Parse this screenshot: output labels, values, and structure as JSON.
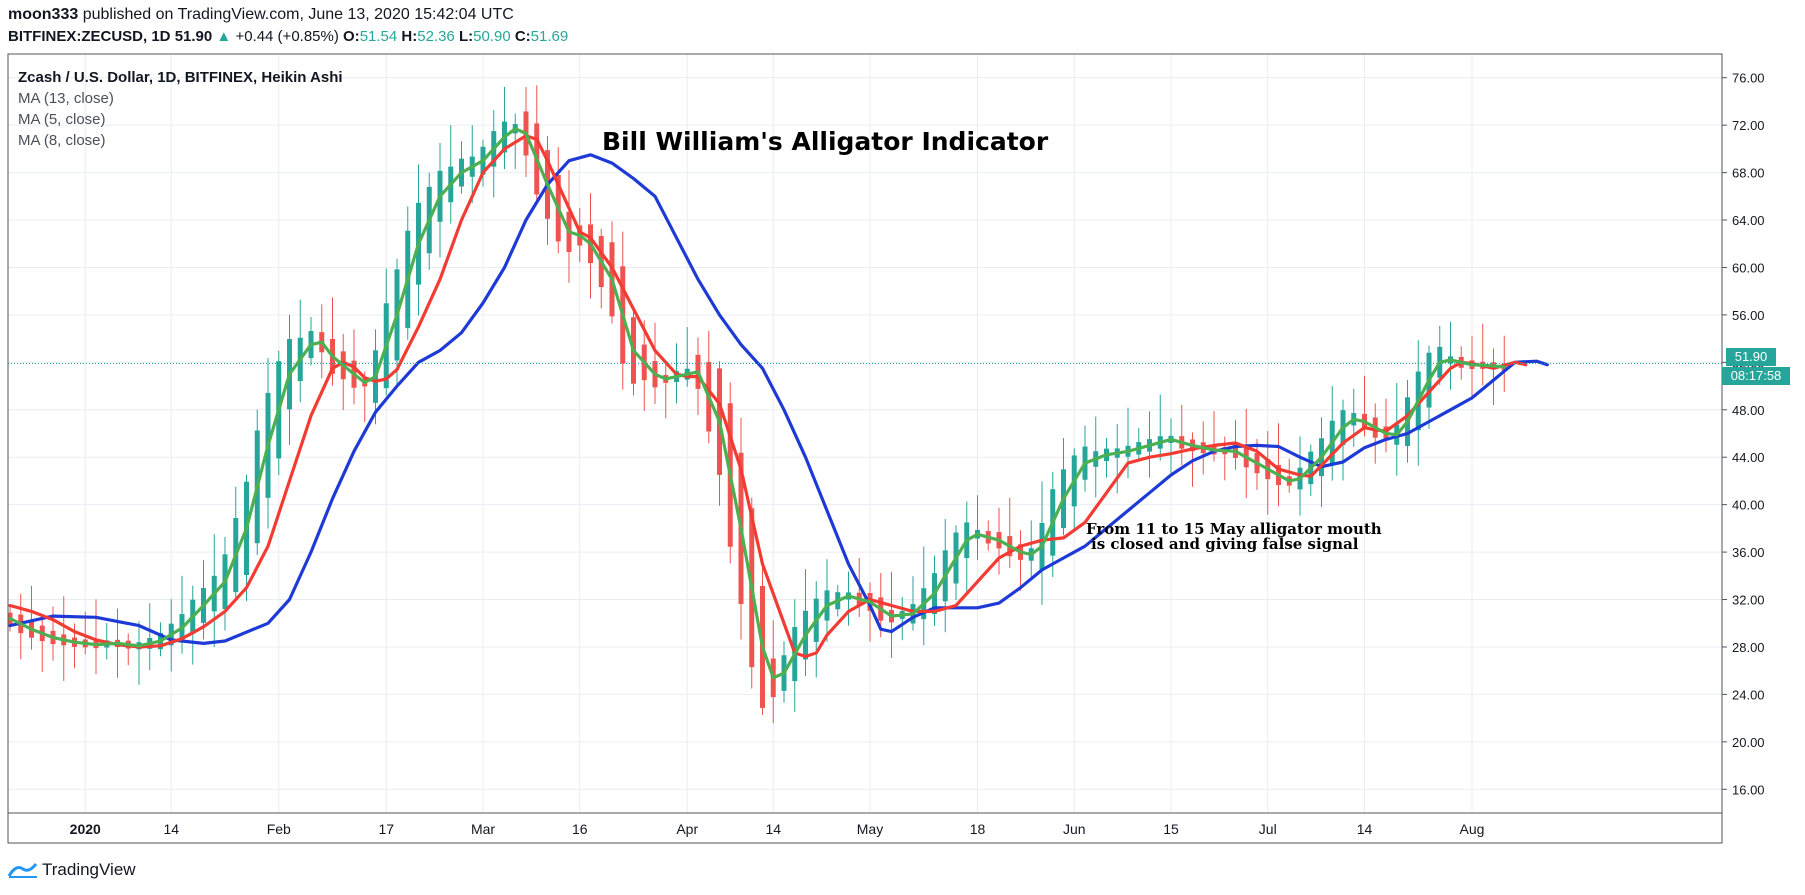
{
  "header": {
    "author": "moon333",
    "published_text": "published on TradingView.com, June 13, 2020 15:42:04 UTC",
    "symbol": "BITFINEX:ZECUSD, 1D",
    "last": "51.90",
    "change": "+0.44 (+0.85%)",
    "o_label": "O:",
    "o_value": "51.54",
    "h_label": "H:",
    "h_value": "52.36",
    "l_label": "L:",
    "l_value": "50.90",
    "c_label": "C:",
    "c_value": "51.69"
  },
  "legend": {
    "main": "Zcash / U.S. Dollar, 1D, BITFINEX, Heikin Ashi",
    "ma13": "MA (13, close)",
    "ma5": "MA (5, close)",
    "ma8": "MA (8, close)"
  },
  "annotation_title": "Bill William's Alligator Indicator",
  "annotation_line1": "From 11 to 15 May alligator mouth",
  "annotation_line2": "is closed and giving false signal",
  "price_tag": "51.90",
  "time_tag": "08:17:58",
  "footer_brand": "TradingView",
  "colors": {
    "up": "#26a69a",
    "down": "#ef5350",
    "ma13": "#1e3ad6",
    "ma5": "#4caf50",
    "ma8": "#f23b32",
    "grid": "#e9edf2"
  },
  "chart_data": {
    "type": "candlestick",
    "style": "Heikin Ashi",
    "ylim": [
      14,
      78
    ],
    "y_ticks": [
      "76.00",
      "72.00",
      "68.00",
      "64.00",
      "60.00",
      "56.00",
      "52.00",
      "48.00",
      "44.00",
      "40.00",
      "36.00",
      "32.00",
      "28.00",
      "24.00",
      "20.00",
      "16.00"
    ],
    "x_ticks": [
      "2020",
      "14",
      "Feb",
      "17",
      "Mar",
      "16",
      "Apr",
      "14",
      "May",
      "18",
      "Jun",
      "15",
      "Jul",
      "14",
      "Aug"
    ],
    "last_price": 51.9,
    "series": [
      {
        "name": "MA (13, close)",
        "points": [
          [
            0,
            29.8
          ],
          [
            4,
            30.6
          ],
          [
            8,
            30.5
          ],
          [
            12,
            29.8
          ],
          [
            15,
            28.6
          ],
          [
            18,
            28.3
          ],
          [
            20,
            28.5
          ],
          [
            24,
            30.0
          ],
          [
            26,
            32.0
          ],
          [
            28,
            36.0
          ],
          [
            30,
            40.5
          ],
          [
            32,
            44.5
          ],
          [
            34,
            47.8
          ],
          [
            36,
            50.0
          ],
          [
            38,
            52.0
          ],
          [
            40,
            53.0
          ],
          [
            42,
            54.5
          ],
          [
            44,
            57.0
          ],
          [
            46,
            60.0
          ],
          [
            48,
            64.0
          ],
          [
            50,
            67.0
          ],
          [
            52,
            69.0
          ],
          [
            54,
            69.5
          ],
          [
            56,
            68.8
          ],
          [
            58,
            67.5
          ],
          [
            60,
            66.0
          ],
          [
            62,
            62.5
          ],
          [
            64,
            59.0
          ],
          [
            66,
            56.0
          ],
          [
            68,
            53.5
          ],
          [
            70,
            51.5
          ],
          [
            72,
            48.0
          ],
          [
            74,
            44.0
          ],
          [
            76,
            39.5
          ],
          [
            78,
            35.0
          ],
          [
            80,
            31.5
          ],
          [
            81,
            29.5
          ],
          [
            82,
            29.3
          ],
          [
            84,
            30.5
          ],
          [
            86,
            31.3
          ],
          [
            88,
            31.3
          ],
          [
            90,
            31.3
          ],
          [
            92,
            31.7
          ],
          [
            94,
            33.0
          ],
          [
            96,
            34.5
          ],
          [
            98,
            35.5
          ],
          [
            100,
            36.5
          ],
          [
            102,
            38.0
          ],
          [
            104,
            39.5
          ],
          [
            106,
            41.0
          ],
          [
            108,
            42.5
          ],
          [
            110,
            43.7
          ],
          [
            112,
            44.5
          ],
          [
            114,
            44.9
          ],
          [
            116,
            45.0
          ],
          [
            118,
            44.9
          ],
          [
            120,
            44.0
          ],
          [
            122,
            43.2
          ],
          [
            124,
            43.6
          ],
          [
            126,
            44.8
          ],
          [
            128,
            45.5
          ],
          [
            130,
            46.0
          ],
          [
            132,
            47.0
          ],
          [
            134,
            48.0
          ],
          [
            136,
            49.0
          ],
          [
            138,
            50.5
          ],
          [
            140,
            52.0
          ],
          [
            142,
            52.1
          ],
          [
            143,
            51.8
          ]
        ]
      },
      {
        "name": "MA (8, close)",
        "points": [
          [
            0,
            31.5
          ],
          [
            2,
            31.0
          ],
          [
            4,
            30.3
          ],
          [
            6,
            29.3
          ],
          [
            8,
            28.6
          ],
          [
            10,
            28.2
          ],
          [
            12,
            28.0
          ],
          [
            14,
            28.1
          ],
          [
            16,
            28.7
          ],
          [
            18,
            29.7
          ],
          [
            20,
            31.0
          ],
          [
            22,
            33.0
          ],
          [
            24,
            36.5
          ],
          [
            26,
            42.0
          ],
          [
            28,
            47.5
          ],
          [
            30,
            51.5
          ],
          [
            31,
            52.0
          ],
          [
            32,
            51.6
          ],
          [
            33,
            50.7
          ],
          [
            34,
            50.4
          ],
          [
            35,
            50.6
          ],
          [
            36,
            51.4
          ],
          [
            38,
            55.0
          ],
          [
            40,
            59.0
          ],
          [
            42,
            64.0
          ],
          [
            44,
            68.0
          ],
          [
            46,
            70.0
          ],
          [
            48,
            71.1
          ],
          [
            49,
            70.8
          ],
          [
            50,
            69.0
          ],
          [
            52,
            65.0
          ],
          [
            53,
            63.0
          ],
          [
            54,
            62.5
          ],
          [
            56,
            60.0
          ],
          [
            58,
            56.5
          ],
          [
            60,
            53.0
          ],
          [
            62,
            51.0
          ],
          [
            63,
            50.8
          ],
          [
            64,
            50.8
          ],
          [
            66,
            48.5
          ],
          [
            68,
            43.0
          ],
          [
            70,
            35.0
          ],
          [
            72,
            30.0
          ],
          [
            73,
            27.5
          ],
          [
            74,
            27.2
          ],
          [
            75,
            27.5
          ],
          [
            76,
            29.0
          ],
          [
            78,
            31.0
          ],
          [
            80,
            32.0
          ],
          [
            82,
            31.5
          ],
          [
            84,
            31.0
          ],
          [
            86,
            31.0
          ],
          [
            88,
            31.5
          ],
          [
            90,
            33.5
          ],
          [
            92,
            35.5
          ],
          [
            94,
            36.5
          ],
          [
            96,
            37.0
          ],
          [
            98,
            37.2
          ],
          [
            100,
            38.5
          ],
          [
            102,
            41.0
          ],
          [
            104,
            43.5
          ],
          [
            106,
            44.0
          ],
          [
            108,
            44.3
          ],
          [
            110,
            44.7
          ],
          [
            112,
            45.0
          ],
          [
            114,
            45.2
          ],
          [
            116,
            44.5
          ],
          [
            118,
            43.0
          ],
          [
            120,
            42.5
          ],
          [
            121,
            42.4
          ],
          [
            122,
            43.3
          ],
          [
            124,
            45.2
          ],
          [
            126,
            46.5
          ],
          [
            127,
            46.3
          ],
          [
            128,
            46.2
          ],
          [
            130,
            47.5
          ],
          [
            132,
            49.5
          ],
          [
            134,
            51.5
          ],
          [
            135,
            52.0
          ],
          [
            136,
            51.9
          ],
          [
            138,
            51.5
          ],
          [
            140,
            52.0
          ],
          [
            141,
            51.8
          ]
        ]
      },
      {
        "name": "MA (5, close)",
        "points": [
          [
            0,
            30.4
          ],
          [
            2,
            29.5
          ],
          [
            4,
            28.8
          ],
          [
            6,
            28.4
          ],
          [
            8,
            28.2
          ],
          [
            10,
            28.3
          ],
          [
            12,
            28.1
          ],
          [
            14,
            28.5
          ],
          [
            16,
            29.6
          ],
          [
            18,
            31.5
          ],
          [
            20,
            33.5
          ],
          [
            22,
            38.0
          ],
          [
            24,
            45.0
          ],
          [
            26,
            51.0
          ],
          [
            28,
            53.5
          ],
          [
            29,
            53.7
          ],
          [
            30,
            52.5
          ],
          [
            32,
            51.0
          ],
          [
            33,
            50.3
          ],
          [
            34,
            50.8
          ],
          [
            36,
            56.0
          ],
          [
            38,
            62.0
          ],
          [
            40,
            66.0
          ],
          [
            42,
            68.0
          ],
          [
            44,
            69.0
          ],
          [
            46,
            71.0
          ],
          [
            47,
            71.7
          ],
          [
            48,
            71.3
          ],
          [
            50,
            67.0
          ],
          [
            52,
            63.0
          ],
          [
            53,
            62.7
          ],
          [
            54,
            62.0
          ],
          [
            56,
            59.0
          ],
          [
            58,
            53.0
          ],
          [
            60,
            51.0
          ],
          [
            61,
            50.6
          ],
          [
            62,
            50.8
          ],
          [
            64,
            51.2
          ],
          [
            66,
            47.0
          ],
          [
            68,
            38.0
          ],
          [
            70,
            28.0
          ],
          [
            71,
            25.4
          ],
          [
            72,
            25.8
          ],
          [
            74,
            29.0
          ],
          [
            76,
            31.5
          ],
          [
            78,
            32.3
          ],
          [
            80,
            31.8
          ],
          [
            82,
            30.6
          ],
          [
            84,
            30.8
          ],
          [
            86,
            32.5
          ],
          [
            88,
            35.5
          ],
          [
            89,
            37.0
          ],
          [
            90,
            37.5
          ],
          [
            92,
            37.0
          ],
          [
            94,
            36.0
          ],
          [
            95,
            35.8
          ],
          [
            96,
            36.5
          ],
          [
            98,
            40.5
          ],
          [
            100,
            43.5
          ],
          [
            102,
            44.2
          ],
          [
            104,
            44.5
          ],
          [
            106,
            45.0
          ],
          [
            108,
            45.5
          ],
          [
            110,
            45.0
          ],
          [
            112,
            44.6
          ],
          [
            114,
            44.5
          ],
          [
            116,
            43.5
          ],
          [
            118,
            42.5
          ],
          [
            119,
            42.0
          ],
          [
            120,
            42.2
          ],
          [
            122,
            44.0
          ],
          [
            124,
            46.5
          ],
          [
            125,
            47.2
          ],
          [
            126,
            47.0
          ],
          [
            128,
            46.0
          ],
          [
            129,
            45.9
          ],
          [
            130,
            47.0
          ],
          [
            132,
            50.5
          ],
          [
            133,
            52.0
          ],
          [
            134,
            52.2
          ],
          [
            136,
            51.8
          ],
          [
            138,
            51.7
          ],
          [
            139,
            51.6
          ]
        ]
      }
    ]
  }
}
